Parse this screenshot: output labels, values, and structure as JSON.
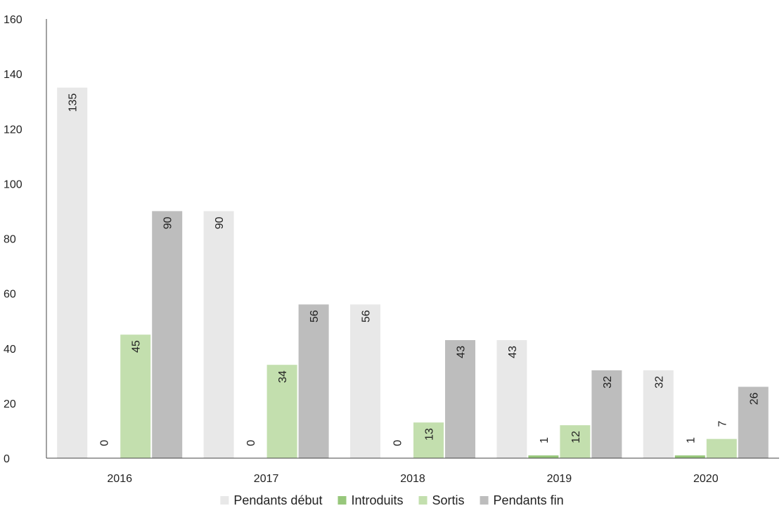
{
  "chart_data": {
    "type": "bar",
    "categories": [
      "2016",
      "2017",
      "2018",
      "2019",
      "2020"
    ],
    "ylim": [
      0,
      160
    ],
    "yticks": [
      0,
      20,
      40,
      60,
      80,
      100,
      120,
      140,
      160
    ],
    "grid": false,
    "legend_position": "bottom",
    "data_labels": "rotated",
    "series": [
      {
        "name": "Pendants début",
        "color": "#e8e8e8",
        "values": [
          135,
          90,
          56,
          43,
          32
        ]
      },
      {
        "name": "Introduits",
        "color": "#97c77b",
        "values": [
          0,
          0,
          0,
          1,
          1
        ]
      },
      {
        "name": "Sortis",
        "color": "#c3dfae",
        "values": [
          45,
          34,
          13,
          12,
          7
        ]
      },
      {
        "name": "Pendants fin",
        "color": "#bdbdbd",
        "values": [
          90,
          56,
          43,
          32,
          26
        ]
      }
    ]
  }
}
